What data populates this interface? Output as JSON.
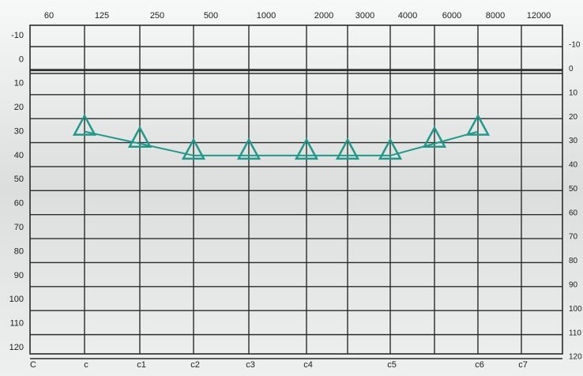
{
  "chart_data": {
    "type": "line",
    "categories": [
      "60",
      "125",
      "250",
      "500",
      "1000",
      "2000",
      "3000",
      "4000",
      "6000",
      "8000",
      "12000"
    ],
    "series": [
      {
        "color": "#1f9a8a",
        "values": [
          null,
          30,
          35,
          40,
          40,
          40,
          40,
          40,
          35,
          30,
          null
        ]
      }
    ],
    "ylim": [
      -10,
      120
    ],
    "yticks": [
      -10,
      0,
      10,
      20,
      30,
      40,
      50,
      60,
      70,
      80,
      90,
      100,
      110,
      120
    ],
    "y_reversed": true,
    "grid": true,
    "marker": "triangle",
    "note_labels": [
      "C",
      "c",
      "c1",
      "c2",
      "c3",
      "c4",
      "c5",
      "c6",
      "c7"
    ]
  }
}
